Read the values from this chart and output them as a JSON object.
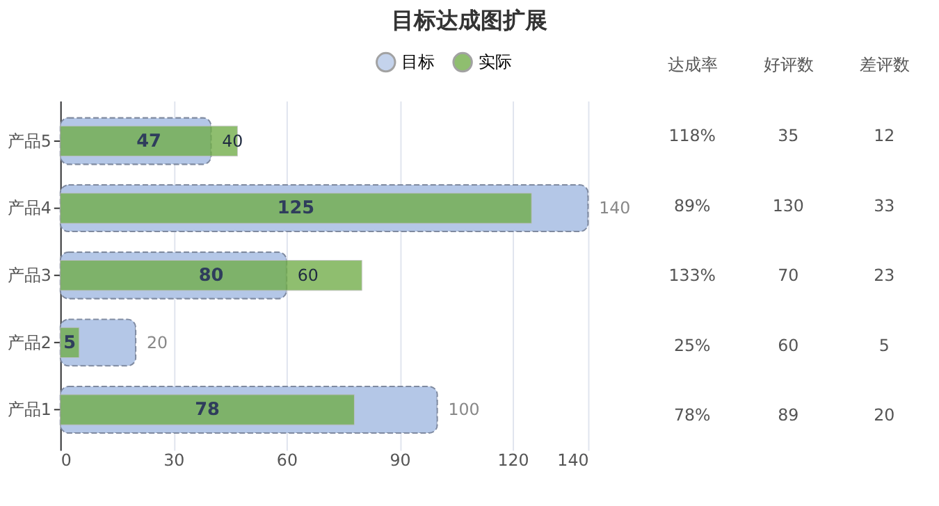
{
  "chart_data": [
    {
      "type": "bar",
      "orientation": "horizontal",
      "title": "目标达成图扩展",
      "categories": [
        "产品5",
        "产品4",
        "产品3",
        "产品2",
        "产品1"
      ],
      "series": [
        {
          "name": "目标",
          "color": "#b4c7e7",
          "values": [
            40,
            140,
            60,
            20,
            100
          ]
        },
        {
          "name": "实际",
          "color": "#70ad47",
          "values": [
            47,
            125,
            80,
            5,
            78
          ]
        }
      ],
      "xlim": [
        0,
        140
      ],
      "xticks": [
        0,
        30,
        60,
        90,
        120,
        140
      ],
      "grid": "x",
      "legend": "top",
      "data_labels": true
    },
    {
      "type": "other",
      "categories": [
        "达成率",
        "好评数",
        "差评数"
      ],
      "cell_labels": [
        [
          "118%",
          "35",
          "12"
        ],
        [
          "89%",
          "130",
          "33"
        ],
        [
          "133%",
          "70",
          "23"
        ],
        [
          "25%",
          "60",
          "5"
        ],
        [
          "78%",
          "89",
          "20"
        ]
      ]
    }
  ]
}
